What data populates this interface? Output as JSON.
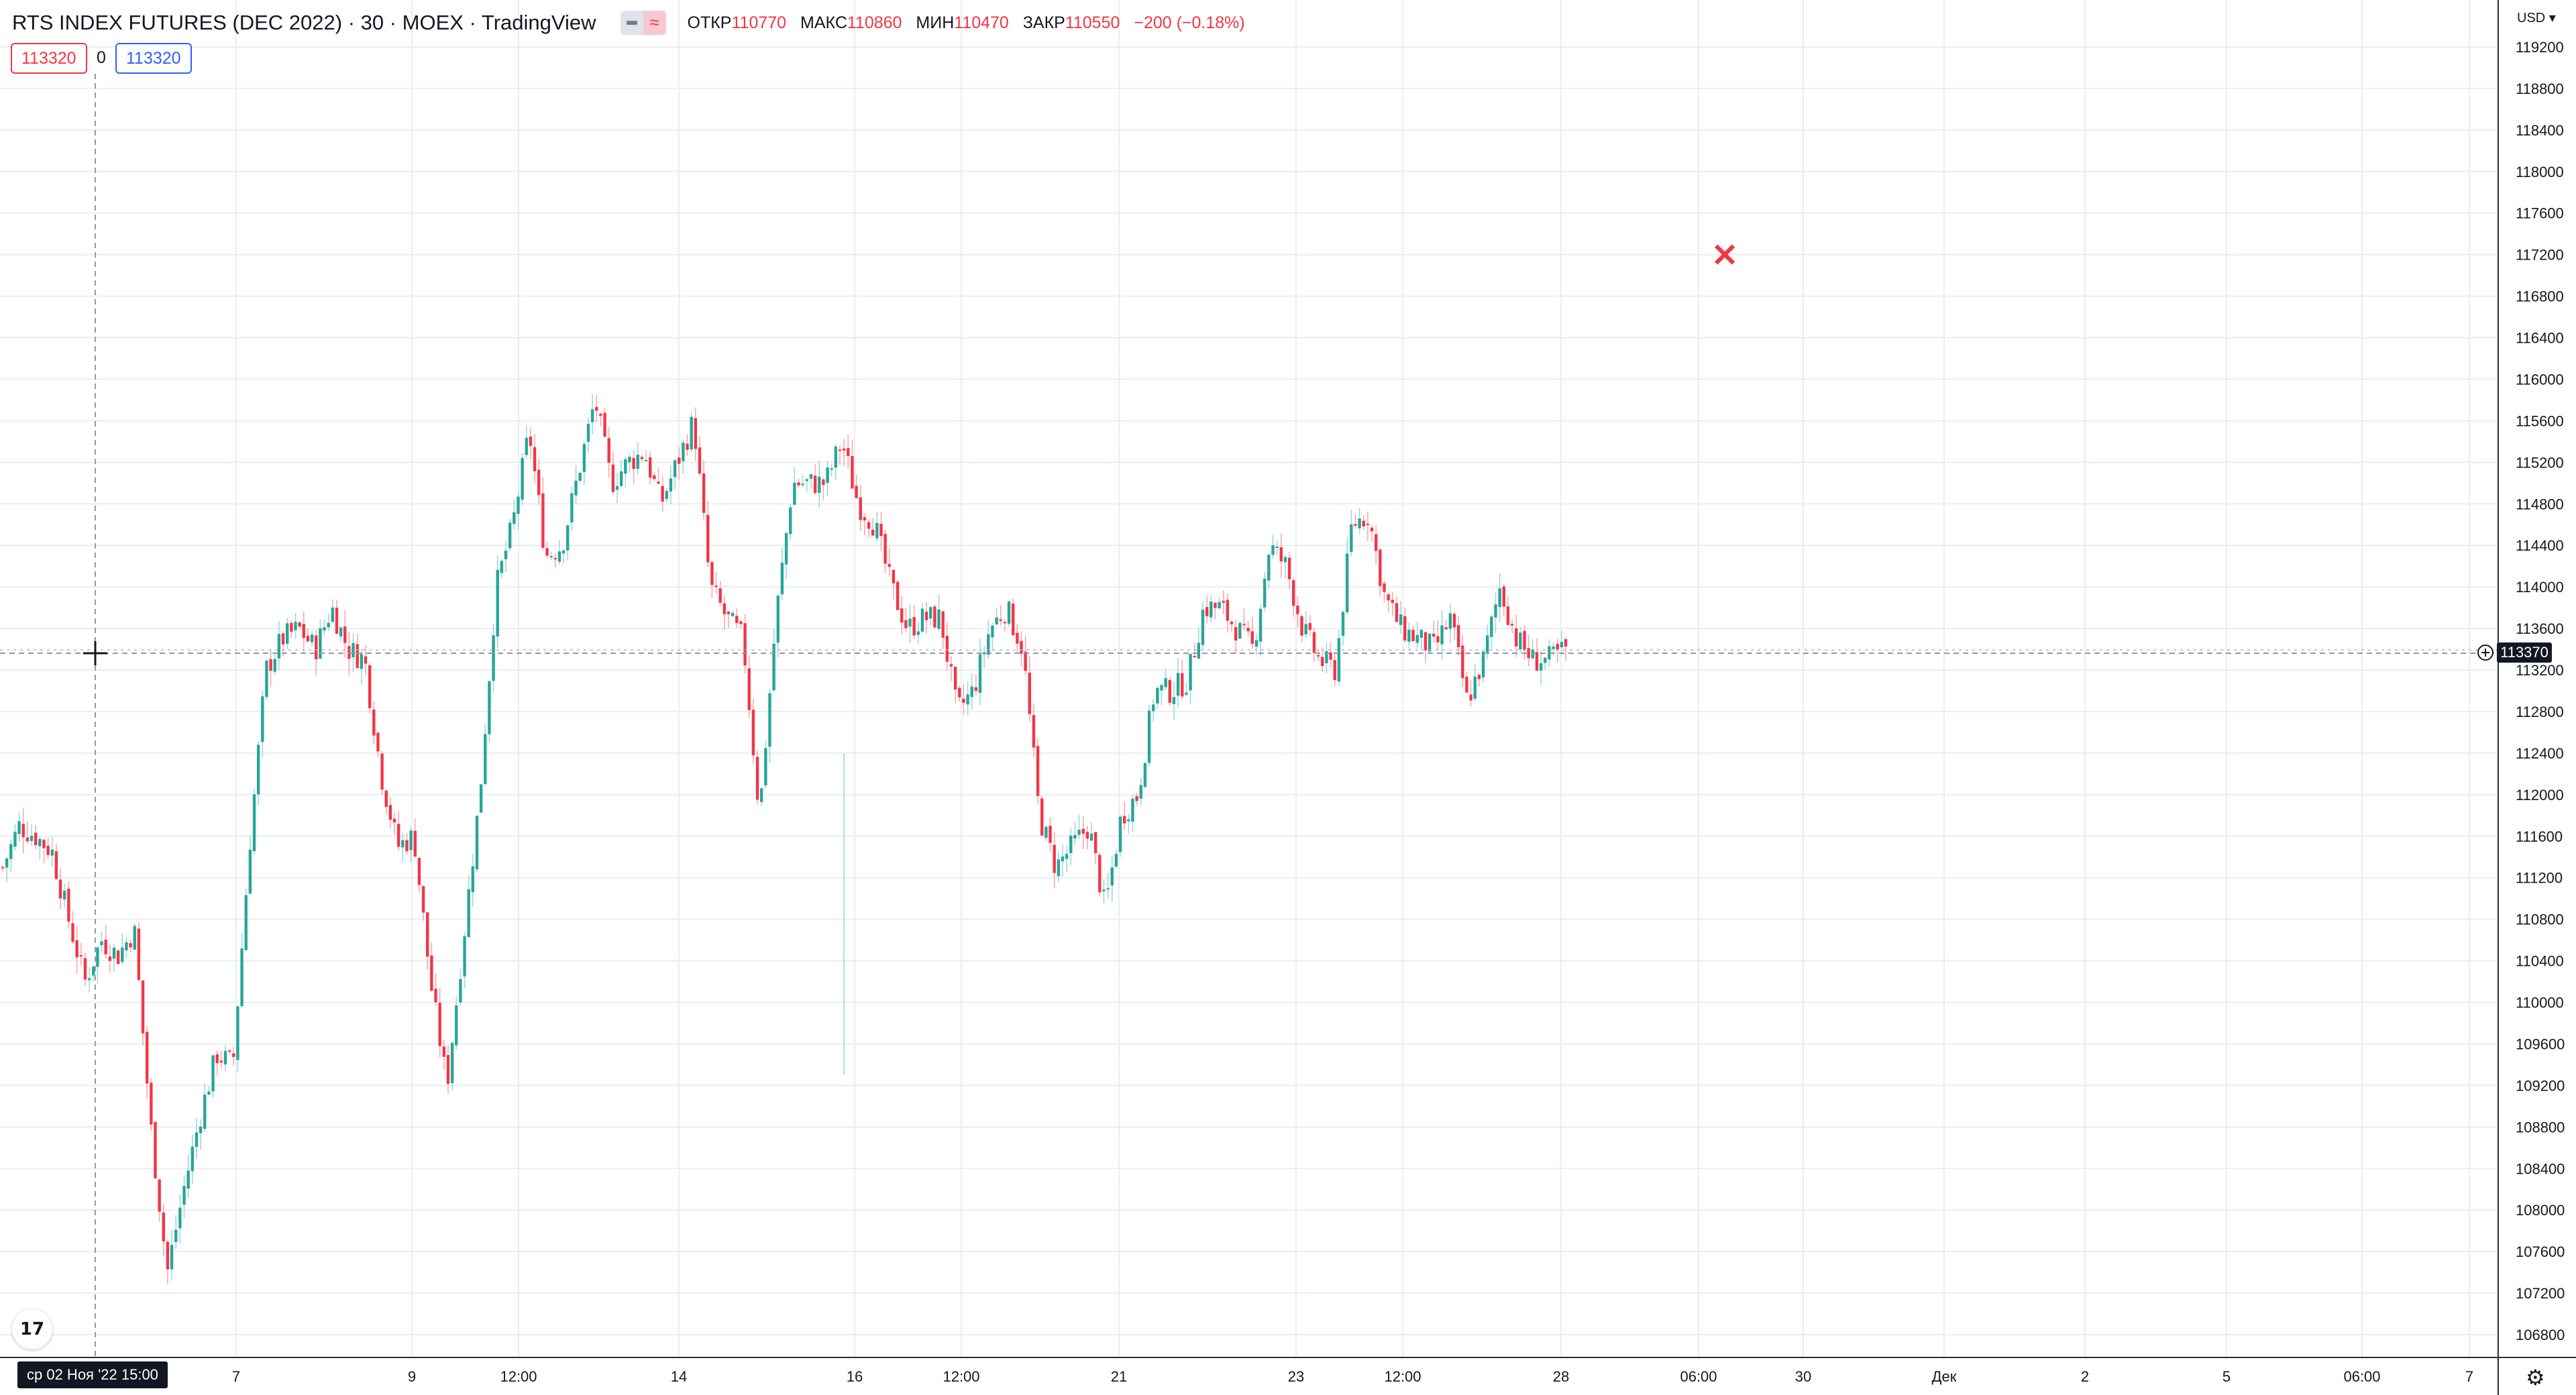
{
  "header": {
    "title": "RTS INDEX FUTURES (DEC 2022) · 30 · MOEX · TradingView",
    "ohlc": [
      {
        "label": "ОТКР",
        "value": "110770"
      },
      {
        "label": "МАКС",
        "value": "110860"
      },
      {
        "label": "МИН",
        "value": "110470"
      },
      {
        "label": "ЗАКР",
        "value": "110550"
      },
      {
        "label": "",
        "value": "−200 (−0.18%)"
      }
    ],
    "indicator_value_1": "113320",
    "indicator_zero": "0",
    "indicator_value_2": "113320"
  },
  "currency": "USD",
  "crosshair": {
    "price_label": "113370",
    "date_label": "ср 02 Ноя '22   15:00"
  },
  "icons": {
    "logo": "tradingview-logo-icon",
    "settings": "gear-icon",
    "cross": "cross-marker-icon"
  },
  "colors": {
    "up": "#26a69a",
    "down": "#f23645",
    "grid": "#e9eef3",
    "text": "#131722",
    "accent": "#2962ff"
  },
  "chart_data": {
    "type": "candlestick",
    "title": "RTS INDEX FUTURES (DEC 2022) · 30 · MOEX · TradingView",
    "y_ticks": [
      119200,
      118800,
      118400,
      118000,
      117600,
      117200,
      116800,
      116400,
      116000,
      115600,
      115200,
      114800,
      114400,
      114000,
      113600,
      113200,
      112800,
      112400,
      112000,
      111600,
      111200,
      110800,
      110400,
      110000,
      109600,
      109200,
      108800,
      108400,
      108000,
      107600,
      107200,
      106800
    ],
    "x_ticks": [
      "7",
      "9",
      "12:00",
      "14",
      "16",
      "12:00",
      "21",
      "23",
      "12:00",
      "28",
      "06:00",
      "30",
      "Дек",
      "2",
      "5",
      "06:00",
      "7"
    ],
    "ylim": [
      106600,
      119400
    ],
    "close_path": [
      {
        "x": 0,
        "y": 111300
      },
      {
        "x": 2,
        "y": 111700
      },
      {
        "x": 4,
        "y": 111600
      },
      {
        "x": 6,
        "y": 111450
      },
      {
        "x": 8,
        "y": 110800
      },
      {
        "x": 10,
        "y": 110200
      },
      {
        "x": 12,
        "y": 110600
      },
      {
        "x": 14,
        "y": 110450
      },
      {
        "x": 16,
        "y": 110700
      },
      {
        "x": 18,
        "y": 108800
      },
      {
        "x": 20,
        "y": 107400
      },
      {
        "x": 22,
        "y": 108200
      },
      {
        "x": 24,
        "y": 108900
      },
      {
        "x": 26,
        "y": 109500
      },
      {
        "x": 28,
        "y": 109400
      },
      {
        "x": 30,
        "y": 111500
      },
      {
        "x": 32,
        "y": 113200
      },
      {
        "x": 34,
        "y": 113500
      },
      {
        "x": 36,
        "y": 113600
      },
      {
        "x": 38,
        "y": 113400
      },
      {
        "x": 40,
        "y": 113800
      },
      {
        "x": 42,
        "y": 113400
      },
      {
        "x": 44,
        "y": 113300
      },
      {
        "x": 46,
        "y": 112200
      },
      {
        "x": 48,
        "y": 111500
      },
      {
        "x": 50,
        "y": 111600
      },
      {
        "x": 52,
        "y": 110200
      },
      {
        "x": 54,
        "y": 109200
      },
      {
        "x": 56,
        "y": 110600
      },
      {
        "x": 58,
        "y": 112000
      },
      {
        "x": 60,
        "y": 114000
      },
      {
        "x": 62,
        "y": 114600
      },
      {
        "x": 64,
        "y": 115500
      },
      {
        "x": 66,
        "y": 114300
      },
      {
        "x": 68,
        "y": 114400
      },
      {
        "x": 70,
        "y": 115100
      },
      {
        "x": 72,
        "y": 115800
      },
      {
        "x": 74,
        "y": 115000
      },
      {
        "x": 76,
        "y": 115200
      },
      {
        "x": 78,
        "y": 115300
      },
      {
        "x": 80,
        "y": 114800
      },
      {
        "x": 82,
        "y": 115200
      },
      {
        "x": 84,
        "y": 115600
      },
      {
        "x": 86,
        "y": 114000
      },
      {
        "x": 88,
        "y": 113700
      },
      {
        "x": 90,
        "y": 113500
      },
      {
        "x": 92,
        "y": 111800
      },
      {
        "x": 94,
        "y": 113700
      },
      {
        "x": 96,
        "y": 115000
      },
      {
        "x": 98,
        "y": 115000
      },
      {
        "x": 100,
        "y": 115000
      },
      {
        "x": 102,
        "y": 115400
      },
      {
        "x": 104,
        "y": 114800
      },
      {
        "x": 106,
        "y": 114600
      },
      {
        "x": 108,
        "y": 114000
      },
      {
        "x": 110,
        "y": 113600
      },
      {
        "x": 112,
        "y": 113700
      },
      {
        "x": 114,
        "y": 113700
      },
      {
        "x": 116,
        "y": 112800
      },
      {
        "x": 118,
        "y": 113000
      },
      {
        "x": 120,
        "y": 113600
      },
      {
        "x": 122,
        "y": 113800
      },
      {
        "x": 124,
        "y": 113400
      },
      {
        "x": 126,
        "y": 111800
      },
      {
        "x": 128,
        "y": 111300
      },
      {
        "x": 130,
        "y": 111500
      },
      {
        "x": 132,
        "y": 111700
      },
      {
        "x": 134,
        "y": 110900
      },
      {
        "x": 136,
        "y": 111800
      },
      {
        "x": 138,
        "y": 112000
      },
      {
        "x": 140,
        "y": 113000
      },
      {
        "x": 142,
        "y": 113000
      },
      {
        "x": 144,
        "y": 113100
      },
      {
        "x": 146,
        "y": 113800
      },
      {
        "x": 148,
        "y": 113800
      },
      {
        "x": 150,
        "y": 113600
      },
      {
        "x": 152,
        "y": 113400
      },
      {
        "x": 154,
        "y": 114400
      },
      {
        "x": 156,
        "y": 114200
      },
      {
        "x": 158,
        "y": 113600
      },
      {
        "x": 160,
        "y": 113300
      },
      {
        "x": 162,
        "y": 113200
      },
      {
        "x": 164,
        "y": 114600
      },
      {
        "x": 166,
        "y": 114700
      },
      {
        "x": 168,
        "y": 113900
      },
      {
        "x": 170,
        "y": 113600
      },
      {
        "x": 172,
        "y": 113500
      },
      {
        "x": 174,
        "y": 113400
      },
      {
        "x": 176,
        "y": 113700
      },
      {
        "x": 178,
        "y": 112900
      },
      {
        "x": 180,
        "y": 113300
      },
      {
        "x": 182,
        "y": 114000
      },
      {
        "x": 184,
        "y": 113500
      },
      {
        "x": 186,
        "y": 113300
      },
      {
        "x": 188,
        "y": 113300
      },
      {
        "x": 190,
        "y": 113400
      }
    ]
  }
}
